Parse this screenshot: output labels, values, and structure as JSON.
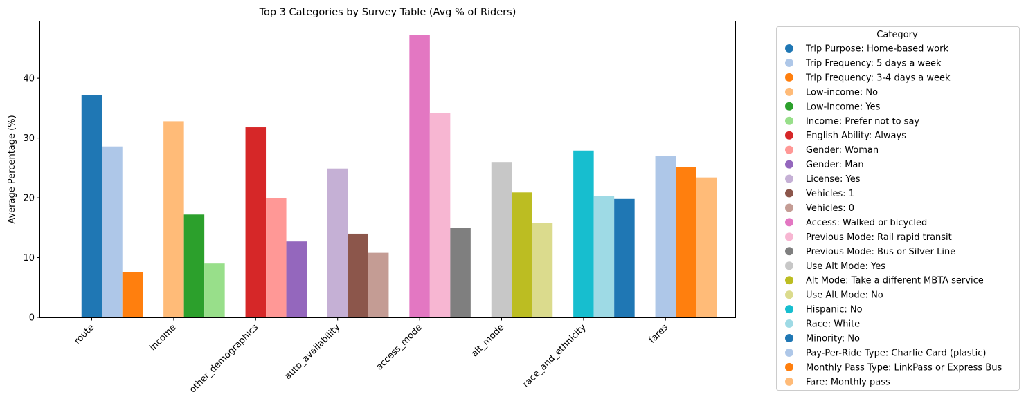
{
  "chart_data": {
    "type": "bar",
    "title": "Top 3 Categories by Survey Table (Avg % of Riders)",
    "xlabel": "",
    "ylabel": "Average Percentage (%)",
    "ylim": [
      0,
      49.5
    ],
    "yticks": [
      0,
      10,
      20,
      30,
      40
    ],
    "grid": false,
    "legend_title": "Category",
    "legend_position": "outside-right",
    "categories": [
      "route",
      "income",
      "other_demographics",
      "auto_availability",
      "access_mode",
      "alt_mode",
      "race_and_ethnicity",
      "fares"
    ],
    "groups": [
      {
        "category": "route",
        "bars": [
          {
            "label": "Trip Purpose: Home-based work",
            "value": 37.2,
            "color": "#1f77b4"
          },
          {
            "label": "Trip Frequency: 5 days a week",
            "value": 28.6,
            "color": "#aec7e8"
          },
          {
            "label": "Trip Frequency: 3-4 days a week",
            "value": 7.6,
            "color": "#ff7f0e"
          }
        ]
      },
      {
        "category": "income",
        "bars": [
          {
            "label": "Low-income: No",
            "value": 32.8,
            "color": "#ffbb78"
          },
          {
            "label": "Low-income: Yes",
            "value": 17.2,
            "color": "#2ca02c"
          },
          {
            "label": "Income: Prefer not to say",
            "value": 9.0,
            "color": "#98df8a"
          }
        ]
      },
      {
        "category": "other_demographics",
        "bars": [
          {
            "label": "English Ability: Always",
            "value": 31.8,
            "color": "#d62728"
          },
          {
            "label": "Gender: Woman",
            "value": 19.9,
            "color": "#ff9896"
          },
          {
            "label": "Gender: Man",
            "value": 12.7,
            "color": "#9467bd"
          }
        ]
      },
      {
        "category": "auto_availability",
        "bars": [
          {
            "label": "License: Yes",
            "value": 24.9,
            "color": "#c5b0d5"
          },
          {
            "label": "Vehicles: 1",
            "value": 14.0,
            "color": "#8c564b"
          },
          {
            "label": "Vehicles: 0",
            "value": 10.8,
            "color": "#c49c94"
          }
        ]
      },
      {
        "category": "access_mode",
        "bars": [
          {
            "label": "Access: Walked or bicycled",
            "value": 47.3,
            "color": "#e377c2"
          },
          {
            "label": "Previous Mode: Rail rapid transit",
            "value": 34.2,
            "color": "#f7b6d2"
          },
          {
            "label": "Previous Mode: Bus or Silver Line",
            "value": 15.0,
            "color": "#7f7f7f"
          }
        ]
      },
      {
        "category": "alt_mode",
        "bars": [
          {
            "label": "Use Alt Mode: Yes",
            "value": 26.0,
            "color": "#c7c7c7"
          },
          {
            "label": "Alt Mode: Take a different MBTA service",
            "value": 20.9,
            "color": "#bcbd22"
          },
          {
            "label": "Use Alt Mode: No",
            "value": 15.8,
            "color": "#dbdb8d"
          }
        ]
      },
      {
        "category": "race_and_ethnicity",
        "bars": [
          {
            "label": "Hispanic: No",
            "value": 27.9,
            "color": "#17becf"
          },
          {
            "label": "Race: White",
            "value": 20.3,
            "color": "#9edae5"
          },
          {
            "label": "Minority: No",
            "value": 19.8,
            "color": "#1f77b4"
          }
        ]
      },
      {
        "category": "fares",
        "bars": [
          {
            "label": "Pay-Per-Ride Type: Charlie Card (plastic)",
            "value": 27.0,
            "color": "#aec7e8"
          },
          {
            "label": "Monthly Pass Type: LinkPass or Express Bus",
            "value": 25.1,
            "color": "#ff7f0e"
          },
          {
            "label": "Fare: Monthly pass",
            "value": 23.4,
            "color": "#ffbb78"
          }
        ]
      }
    ]
  }
}
